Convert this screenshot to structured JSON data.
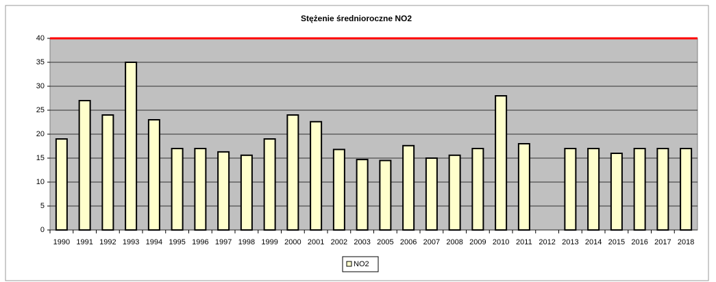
{
  "chart_data": {
    "type": "bar",
    "title": "Stężenie średnioroczne NO2",
    "categories": [
      "1990",
      "1991",
      "1992",
      "1993",
      "1994",
      "1995",
      "1996",
      "1997",
      "1998",
      "1999",
      "2000",
      "2001",
      "2002",
      "2003",
      "2005",
      "2006",
      "2007",
      "2008",
      "2009",
      "2010",
      "2011",
      "2012",
      "2013",
      "2014",
      "2015",
      "2016",
      "2017",
      "2018"
    ],
    "series": [
      {
        "name": "NO2",
        "color": "#ffffcc",
        "values": [
          19,
          27,
          24,
          35,
          23,
          17,
          17,
          16.3,
          15.6,
          19,
          24,
          22.6,
          16.8,
          14.7,
          14.5,
          17.6,
          15,
          15.6,
          17,
          28,
          18,
          null,
          17,
          17,
          16,
          17,
          17,
          17
        ]
      }
    ],
    "ylim": [
      0,
      40
    ],
    "yticks": [
      0,
      5,
      10,
      15,
      20,
      25,
      30,
      35,
      40
    ],
    "grid": true,
    "limit_line": {
      "value": 40,
      "color": "#ff0000"
    },
    "legend": "bottom"
  }
}
